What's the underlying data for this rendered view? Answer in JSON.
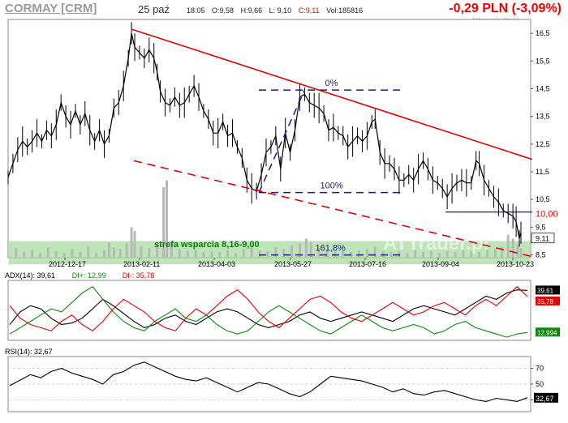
{
  "header": {
    "symbol": "CORMAY [CRM]",
    "date": "25 paź",
    "time": "18:05",
    "open": "O:9,58",
    "high": "H:9,66",
    "low": "L: 9,10",
    "close": "C:9,11",
    "volume": "Vol:185816",
    "change": "-0,29 PLN (-3,09%)",
    "interval": "Interwał: dzień"
  },
  "colors": {
    "price": "#000000",
    "trendline": "#e00000",
    "fib": "#1a1a8a",
    "support_zone": "#a8dca0",
    "support_text": "#0a7a0a",
    "volume": "#b8b8b8",
    "adx": "#000000",
    "di_plus": "#0a8a0a",
    "di_minus": "#e00000"
  },
  "chart_data": [
    {
      "type": "line",
      "name": "price",
      "x_labels": [
        "2012-12-17",
        "2013-02-11",
        "2013-04-03",
        "2013-05-27",
        "2013-07-16",
        "2013-09-04",
        "2013-10-23"
      ],
      "y_ticks": [
        "16,5",
        "15,5",
        "14,5",
        "13,5",
        "12,5",
        "11,5",
        "10,5",
        "9,5",
        "8,5"
      ],
      "y_tick_values": [
        16.5,
        15.5,
        14.5,
        13.5,
        12.5,
        11.5,
        10.5,
        9.5,
        8.5
      ],
      "ylim": [
        8.4,
        17.0
      ],
      "series_points": [
        [
          0,
          11.3
        ],
        [
          6,
          11.8
        ],
        [
          12,
          12.3
        ],
        [
          18,
          12.6
        ],
        [
          24,
          12.4
        ],
        [
          30,
          12.6
        ],
        [
          36,
          12.9
        ],
        [
          42,
          12.6
        ],
        [
          48,
          13.0
        ],
        [
          54,
          12.8
        ],
        [
          60,
          13.2
        ],
        [
          66,
          14.0
        ],
        [
          72,
          13.5
        ],
        [
          78,
          13.2
        ],
        [
          84,
          13.7
        ],
        [
          90,
          13.2
        ],
        [
          96,
          13.6
        ],
        [
          102,
          13.0
        ],
        [
          108,
          12.6
        ],
        [
          114,
          13.0
        ],
        [
          120,
          12.5
        ],
        [
          126,
          12.8
        ],
        [
          132,
          13.8
        ],
        [
          138,
          14.0
        ],
        [
          144,
          14.6
        ],
        [
          150,
          15.6
        ],
        [
          154,
          16.5
        ],
        [
          158,
          16.0
        ],
        [
          164,
          15.8
        ],
        [
          170,
          15.6
        ],
        [
          176,
          15.9
        ],
        [
          182,
          15.6
        ],
        [
          186,
          15.1
        ],
        [
          190,
          14.4
        ],
        [
          196,
          14.0
        ],
        [
          202,
          13.9
        ],
        [
          208,
          14.2
        ],
        [
          214,
          13.9
        ],
        [
          220,
          14.0
        ],
        [
          226,
          14.3
        ],
        [
          232,
          14.6
        ],
        [
          238,
          14.2
        ],
        [
          244,
          13.7
        ],
        [
          250,
          13.4
        ],
        [
          256,
          12.9
        ],
        [
          262,
          12.9
        ],
        [
          268,
          13.3
        ],
        [
          274,
          12.8
        ],
        [
          280,
          12.9
        ],
        [
          286,
          12.4
        ],
        [
          292,
          12.0
        ],
        [
          298,
          11.2
        ],
        [
          304,
          10.9
        ],
        [
          310,
          10.8
        ],
        [
          316,
          11.4
        ],
        [
          322,
          12.2
        ],
        [
          328,
          12.4
        ],
        [
          334,
          12.8
        ],
        [
          340,
          11.6
        ],
        [
          346,
          12.9
        ],
        [
          352,
          12.2
        ],
        [
          358,
          13.0
        ],
        [
          364,
          14.2
        ],
        [
          370,
          14.3
        ],
        [
          376,
          14.0
        ],
        [
          382,
          13.9
        ],
        [
          388,
          13.8
        ],
        [
          394,
          13.6
        ],
        [
          400,
          13.0
        ],
        [
          406,
          13.1
        ],
        [
          412,
          12.9
        ],
        [
          418,
          12.8
        ],
        [
          424,
          12.4
        ],
        [
          430,
          12.6
        ],
        [
          436,
          12.8
        ],
        [
          442,
          12.6
        ],
        [
          448,
          12.8
        ],
        [
          454,
          13.3
        ],
        [
          458,
          13.4
        ],
        [
          464,
          12.2
        ],
        [
          470,
          11.8
        ],
        [
          476,
          11.8
        ],
        [
          482,
          11.6
        ],
        [
          488,
          11.2
        ],
        [
          494,
          11.2
        ],
        [
          500,
          11.4
        ],
        [
          506,
          11.2
        ],
        [
          512,
          11.6
        ],
        [
          518,
          11.9
        ],
        [
          524,
          11.6
        ],
        [
          530,
          11.2
        ],
        [
          536,
          11.1
        ],
        [
          542,
          10.9
        ],
        [
          548,
          10.6
        ],
        [
          554,
          10.9
        ],
        [
          560,
          11.1
        ],
        [
          566,
          11.2
        ],
        [
          572,
          11.1
        ],
        [
          578,
          11.1
        ],
        [
          584,
          11.9
        ],
        [
          588,
          11.8
        ],
        [
          594,
          11.2
        ],
        [
          600,
          10.9
        ],
        [
          606,
          10.6
        ],
        [
          612,
          10.4
        ],
        [
          618,
          10.1
        ],
        [
          624,
          10.0
        ],
        [
          630,
          9.9
        ],
        [
          634,
          9.7
        ],
        [
          638,
          9.1
        ],
        [
          640,
          9.3
        ]
      ],
      "volume_bars": [
        [
          10,
          1.0
        ],
        [
          20,
          0.6
        ],
        [
          30,
          0.8
        ],
        [
          40,
          0.5
        ],
        [
          50,
          1.1
        ],
        [
          60,
          0.7
        ],
        [
          70,
          0.5
        ],
        [
          80,
          0.9
        ],
        [
          90,
          0.6
        ],
        [
          100,
          1.2
        ],
        [
          110,
          0.5
        ],
        [
          120,
          0.8
        ],
        [
          126,
          1.6
        ],
        [
          132,
          1.1
        ],
        [
          140,
          0.9
        ],
        [
          148,
          1.5
        ],
        [
          154,
          3.2
        ],
        [
          158,
          2.8
        ],
        [
          166,
          1.2
        ],
        [
          176,
          1.0
        ],
        [
          186,
          1.4
        ],
        [
          194,
          7.4
        ],
        [
          198,
          8.1
        ],
        [
          204,
          1.5
        ],
        [
          214,
          0.9
        ],
        [
          224,
          0.7
        ],
        [
          234,
          0.8
        ],
        [
          244,
          0.6
        ],
        [
          254,
          0.7
        ],
        [
          264,
          0.6
        ],
        [
          274,
          0.8
        ],
        [
          284,
          0.5
        ],
        [
          294,
          0.9
        ],
        [
          304,
          1.2
        ],
        [
          314,
          0.8
        ],
        [
          324,
          0.7
        ],
        [
          334,
          1.1
        ],
        [
          344,
          0.9
        ],
        [
          354,
          1.3
        ],
        [
          364,
          1.5
        ],
        [
          372,
          2.0
        ],
        [
          378,
          1.6
        ],
        [
          388,
          1.0
        ],
        [
          398,
          0.8
        ],
        [
          408,
          0.6
        ],
        [
          418,
          0.7
        ],
        [
          428,
          0.6
        ],
        [
          438,
          0.8
        ],
        [
          448,
          0.9
        ],
        [
          458,
          1.2
        ],
        [
          468,
          0.7
        ],
        [
          478,
          0.6
        ],
        [
          488,
          0.7
        ],
        [
          498,
          0.5
        ],
        [
          508,
          0.8
        ],
        [
          518,
          0.6
        ],
        [
          528,
          0.7
        ],
        [
          538,
          0.5
        ],
        [
          548,
          0.7
        ],
        [
          558,
          0.6
        ],
        [
          568,
          0.8
        ],
        [
          578,
          0.7
        ],
        [
          588,
          0.6
        ],
        [
          598,
          0.8
        ],
        [
          608,
          0.9
        ],
        [
          616,
          1.1
        ],
        [
          624,
          2.4
        ],
        [
          630,
          2.0
        ],
        [
          636,
          1.4
        ],
        [
          640,
          1.0
        ]
      ],
      "support_zone": {
        "label": "strefa wsparcia 8,16-9,00",
        "from": 8.16,
        "to": 9.0
      },
      "trendlines": [
        {
          "style": "solid",
          "points": [
            [
              154,
              16.65
            ],
            [
              654,
              11.95
            ]
          ]
        },
        {
          "style": "dashed",
          "points": [
            [
              157,
              11.9
            ],
            [
              654,
              8.44
            ]
          ]
        },
        {
          "style": "solid-blue",
          "points": [
            [
              546,
              10.05
            ],
            [
              654,
              10.05
            ]
          ]
        }
      ],
      "fib_levels": [
        {
          "label": "0%",
          "value": 14.45,
          "from": 313,
          "to": 490
        },
        {
          "label": "100%",
          "value": 10.75,
          "from": 313,
          "to": 490
        },
        {
          "label": "161,8%",
          "value": 8.5,
          "from": 313,
          "to": 490
        }
      ],
      "fib_diagonal": [
        [
          313,
          10.75
        ],
        [
          370,
          14.45
        ]
      ],
      "price_labels": [
        {
          "text": "10,00",
          "value": 10.0,
          "color": "#e00000"
        },
        {
          "text": "9,11",
          "value": 9.11,
          "color": "#000000"
        }
      ],
      "watermark": "ATTrader.pl"
    },
    {
      "type": "line",
      "title": "ADX(14): 39,61",
      "legend": [
        {
          "text": "ADX(14): 39,61",
          "color": "#000000"
        },
        {
          "text": "DI+: 12,99",
          "color": "#0a8a0a"
        },
        {
          "text": "DI-: 35,78",
          "color": "#e00000"
        }
      ],
      "series": [
        {
          "name": "ADX",
          "values": [
            18,
            26,
            30,
            28,
            22,
            18,
            19,
            22,
            28,
            34,
            30,
            25,
            20,
            16,
            18,
            22,
            24,
            20,
            18,
            22,
            26,
            28,
            26,
            22,
            18,
            16,
            18,
            20,
            24,
            26,
            22,
            20,
            22,
            24,
            26,
            24,
            22,
            20,
            24,
            28,
            30,
            28,
            26,
            24,
            28,
            32,
            36,
            34,
            38,
            40,
            39.61
          ]
        },
        {
          "name": "DI+",
          "values": [
            12,
            16,
            20,
            24,
            28,
            26,
            32,
            38,
            42,
            34,
            26,
            20,
            16,
            14,
            20,
            24,
            28,
            22,
            20,
            24,
            18,
            14,
            12,
            14,
            20,
            26,
            30,
            26,
            22,
            18,
            14,
            12,
            16,
            20,
            24,
            20,
            16,
            14,
            16,
            18,
            16,
            12,
            14,
            18,
            20,
            16,
            14,
            12,
            10,
            12,
            12.99
          ]
        },
        {
          "name": "DI-",
          "values": [
            30,
            22,
            18,
            16,
            14,
            20,
            24,
            18,
            14,
            20,
            28,
            34,
            30,
            26,
            20,
            16,
            14,
            22,
            28,
            24,
            30,
            36,
            40,
            34,
            26,
            20,
            16,
            22,
            28,
            34,
            36,
            32,
            26,
            22,
            20,
            24,
            28,
            32,
            28,
            24,
            26,
            30,
            32,
            28,
            24,
            30,
            34,
            30,
            36,
            42,
            35.78
          ]
        }
      ],
      "end_labels": [
        {
          "text": "39,61",
          "color": "#000000"
        },
        {
          "text": "35,78",
          "color": "#e00000"
        },
        {
          "text": "12,994",
          "color": "#0a8a0a"
        }
      ]
    },
    {
      "type": "line",
      "title": "RSI(14): 32,67",
      "y_ticks": [
        "70",
        "50",
        "30"
      ],
      "y_tick_values": [
        70,
        50,
        30
      ],
      "ylim": [
        15,
        85
      ],
      "series": [
        {
          "name": "RSI",
          "values": [
            48,
            55,
            62,
            58,
            66,
            70,
            64,
            60,
            56,
            50,
            62,
            66,
            74,
            78,
            72,
            66,
            60,
            56,
            54,
            58,
            52,
            46,
            40,
            46,
            52,
            50,
            44,
            38,
            34,
            40,
            50,
            60,
            58,
            56,
            54,
            50,
            46,
            40,
            44,
            38,
            36,
            40,
            42,
            38,
            34,
            30,
            28,
            32,
            30,
            28,
            32.67
          ]
        }
      ],
      "end_label": {
        "text": "32,67",
        "color": "#000000"
      }
    }
  ]
}
